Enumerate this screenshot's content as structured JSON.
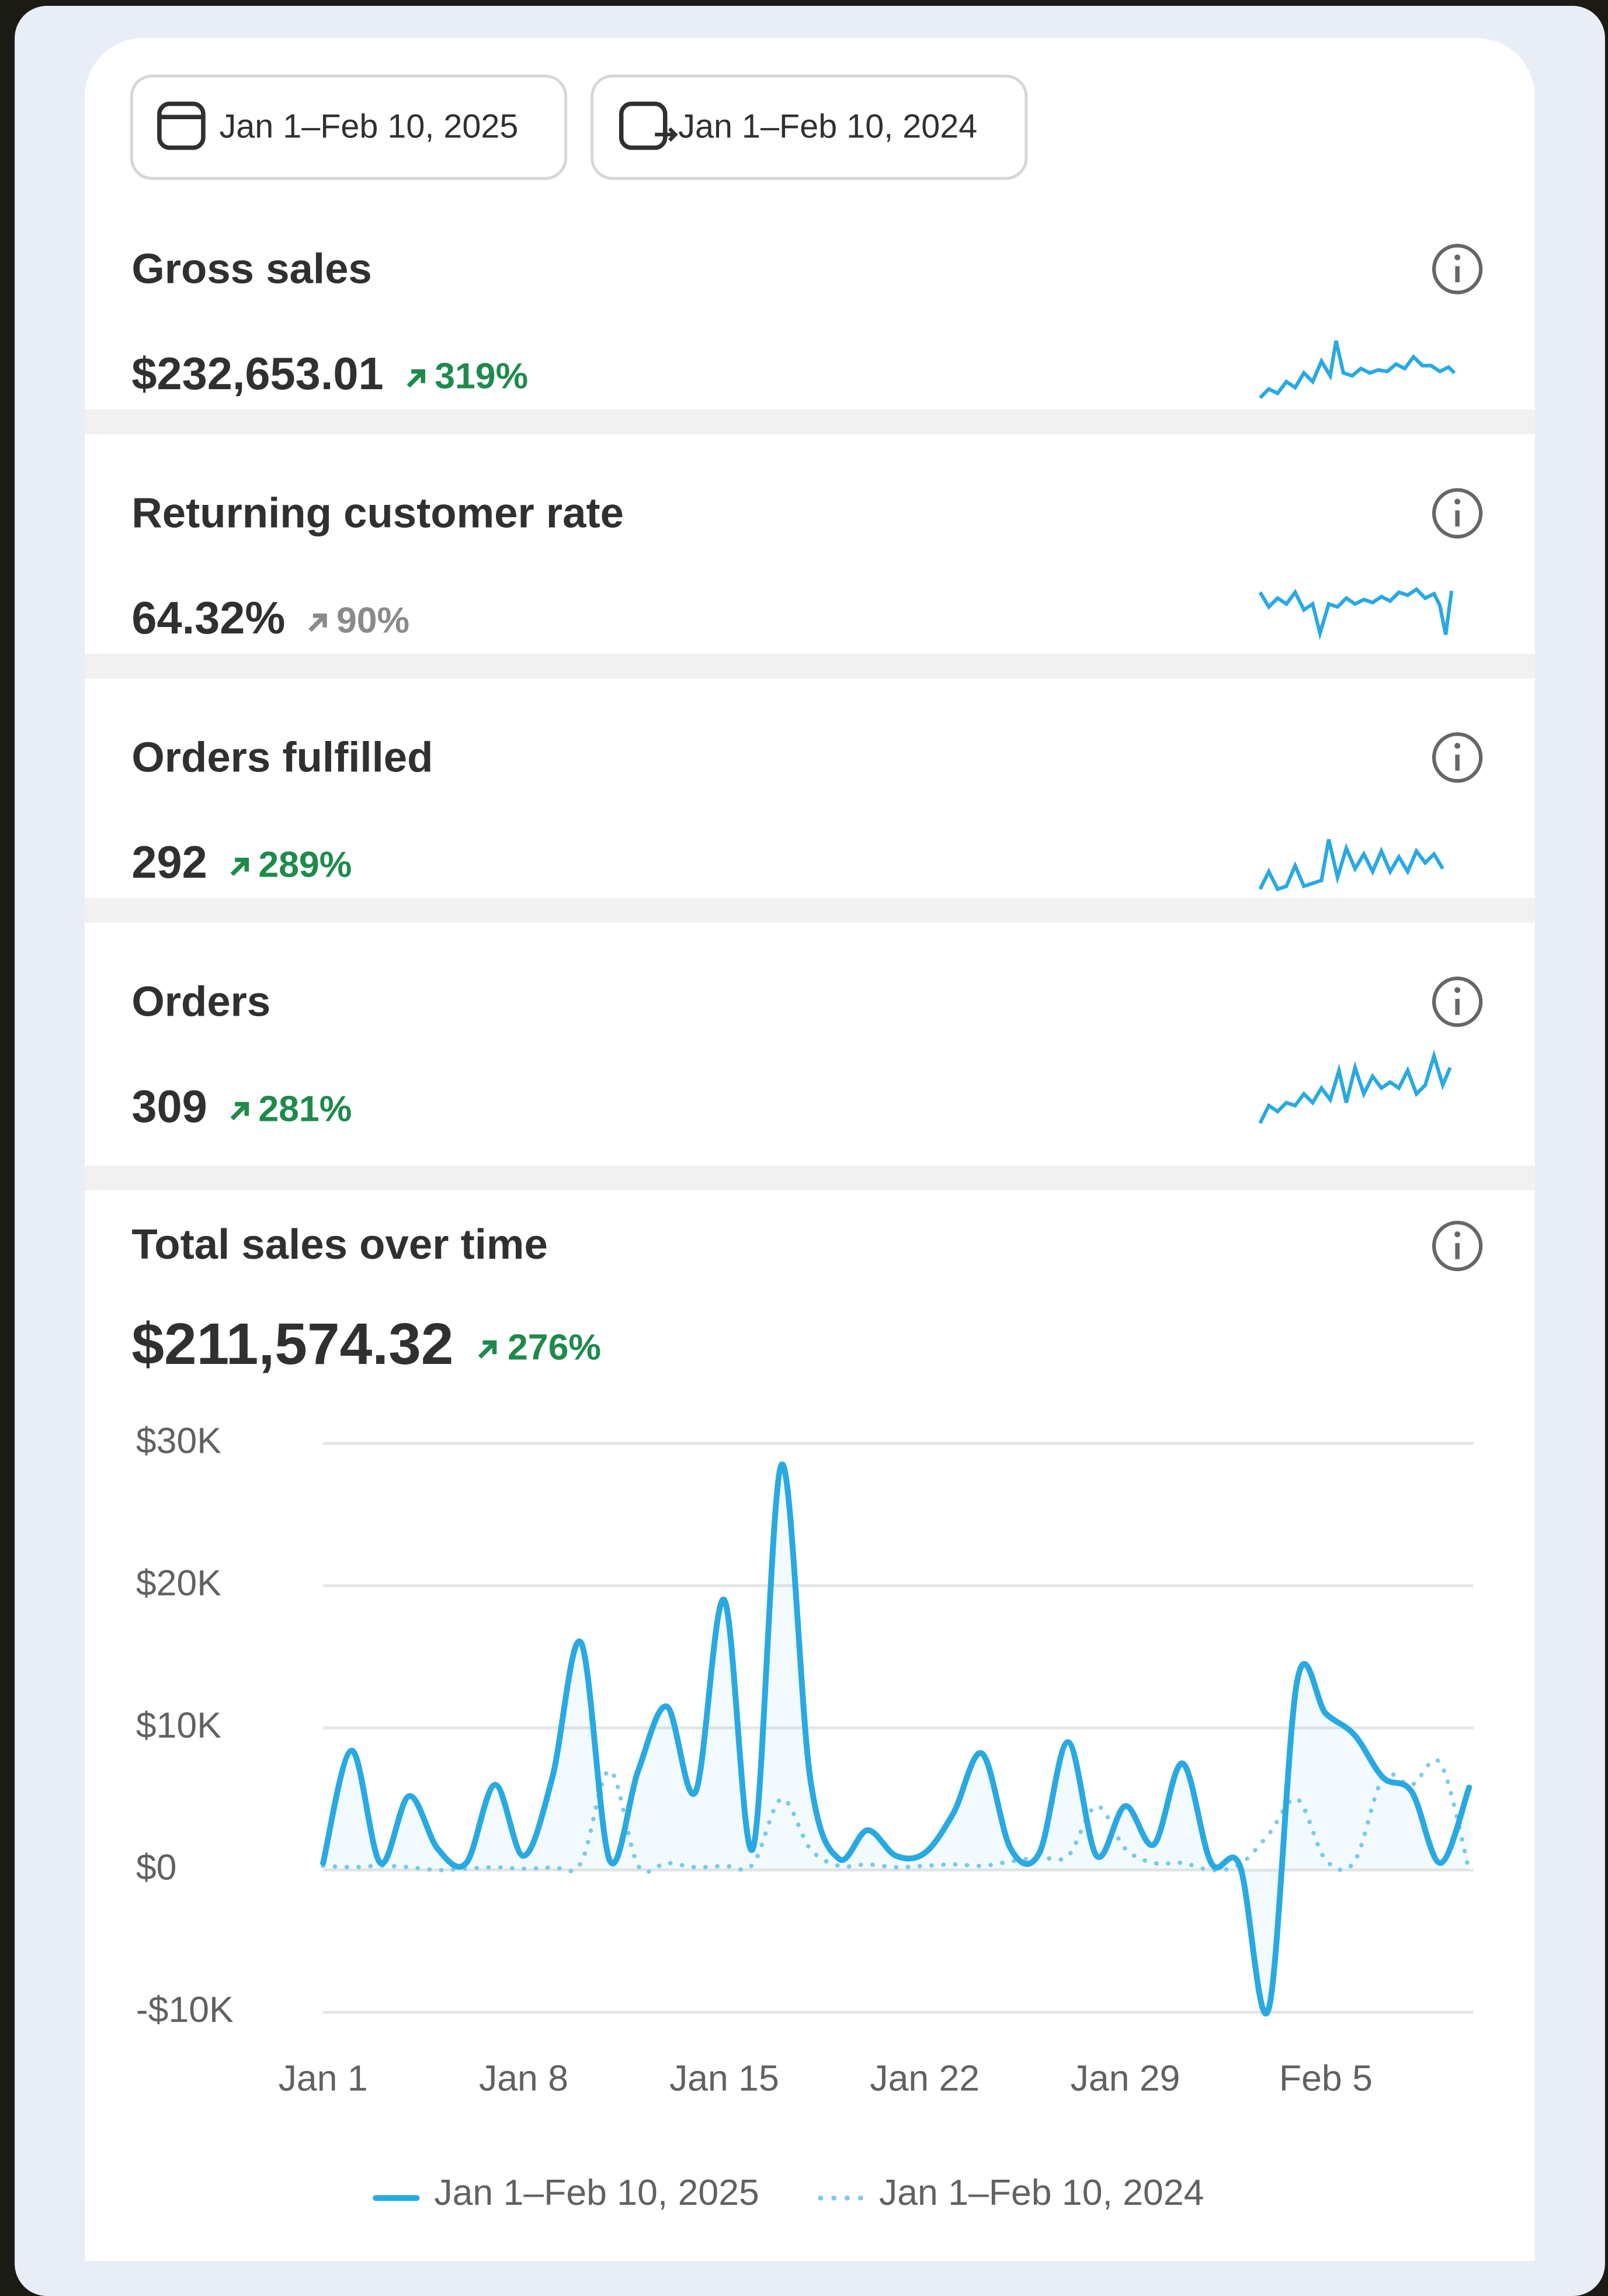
{
  "date_range": {
    "primary": "Jan 1–Feb 10, 2025",
    "comparison": "Jan 1–Feb 10, 2024"
  },
  "metrics": [
    {
      "title": "Gross sales",
      "value": "$232,653.01",
      "change": "319%",
      "trend": "positive"
    },
    {
      "title": "Returning customer rate",
      "value": "64.32%",
      "change": "90%",
      "trend": "neutral"
    },
    {
      "title": "Orders fulfilled",
      "value": "292",
      "change": "289%",
      "trend": "positive"
    },
    {
      "title": "Orders",
      "value": "309",
      "change": "281%",
      "trend": "positive"
    }
  ],
  "chart_data": {
    "type": "line",
    "title": "Total sales over time",
    "total": "$211,574.32",
    "change": "276%",
    "categories": [
      "Jan 1",
      null,
      null,
      null,
      null,
      null,
      null,
      "Jan 8",
      null,
      null,
      null,
      null,
      null,
      null,
      "Jan 15",
      null,
      null,
      null,
      null,
      null,
      null,
      "Jan 22",
      null,
      null,
      null,
      null,
      null,
      null,
      "Jan 29",
      null,
      null,
      null,
      null,
      null,
      null,
      "Feb 5",
      null,
      null,
      null,
      null,
      null
    ],
    "series": [
      {
        "name": "Jan 1–Feb 10, 2025",
        "color": "#29a9e1",
        "style": "solid",
        "values": [
          500,
          8400,
          500,
          5200,
          1500,
          500,
          6000,
          1000,
          6500,
          16000,
          700,
          7000,
          11500,
          5500,
          19000,
          1500,
          28500,
          6500,
          800,
          2800,
          1000,
          1200,
          4000,
          8200,
          1500,
          1200,
          9000,
          1000,
          4500,
          1800,
          7500,
          500,
          300,
          -9800,
          13300,
          11000,
          9500,
          6500,
          5500,
          500,
          5800
        ]
      },
      {
        "name": "Jan 1–Feb 10, 2024",
        "color": "#7fcbe8",
        "style": "dotted",
        "values": [
          300,
          200,
          300,
          200,
          0,
          100,
          200,
          100,
          200,
          500,
          7000,
          300,
          500,
          200,
          300,
          400,
          5000,
          1500,
          300,
          400,
          200,
          300,
          400,
          300,
          600,
          900,
          1000,
          4500,
          1500,
          500,
          500,
          0,
          400,
          2500,
          5000,
          700,
          600,
          6500,
          6000,
          7500,
          0
        ]
      }
    ],
    "ylim": [
      -10000,
      30000
    ],
    "yticks": [
      {
        "value": -10000,
        "label": "-$10K"
      },
      {
        "value": 0,
        "label": "$0"
      },
      {
        "value": 10000,
        "label": "$10K"
      },
      {
        "value": 20000,
        "label": "$20K"
      },
      {
        "value": 30000,
        "label": "$30K"
      }
    ],
    "grid": true,
    "legend": "bottom"
  }
}
